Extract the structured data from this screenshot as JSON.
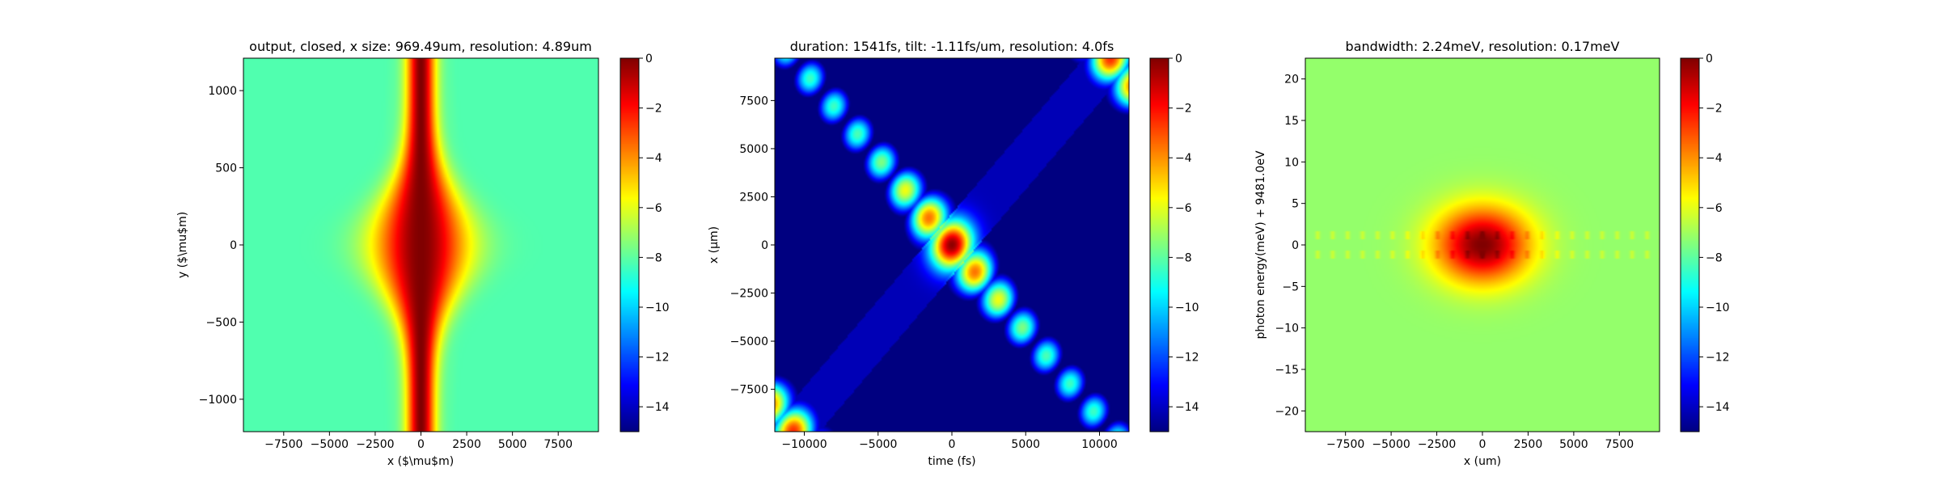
{
  "chart_data": [
    {
      "type": "heatmap",
      "title": "output, closed, x size: 969.49um, resolution: 4.89um",
      "xlabel": "x ($\\mu$m)",
      "ylabel": "y ($\\mu$m)",
      "xlim": [
        -9700,
        9700
      ],
      "ylim": [
        -1210,
        1210
      ],
      "xticks": [
        -7500,
        -5000,
        -2500,
        0,
        2500,
        5000,
        7500
      ],
      "yticks": [
        -1000,
        -500,
        0,
        500,
        1000
      ],
      "colorbar": {
        "ticks": [
          0,
          -2,
          -4,
          -6,
          -8,
          -10,
          -12,
          -14
        ],
        "range": [
          -15,
          0
        ],
        "colormap": "jet"
      },
      "field": {
        "description_values": "log intensity, peak 0 at origin",
        "core_half_width_x": 1000,
        "edge_level": -11
      }
    },
    {
      "type": "heatmap",
      "title": "duration: 1541fs, tilt: -1.11fs/um, resolution: 4.0fs",
      "xlabel": "time (fs)",
      "ylabel": "x (μm)",
      "xlim": [
        -12000,
        12000
      ],
      "ylim": [
        -9700,
        9700
      ],
      "xticks": [
        -10000,
        -5000,
        0,
        5000,
        10000
      ],
      "yticks": [
        -7500,
        -5000,
        -2500,
        0,
        2500,
        5000,
        7500
      ],
      "colorbar": {
        "ticks": [
          0,
          -2,
          -4,
          -6,
          -8,
          -10,
          -12,
          -14
        ],
        "range": [
          -15,
          0
        ],
        "colormap": "jet"
      },
      "field": {
        "tilt_fs_per_um": -1.11,
        "period_fs": 21500,
        "blob_spacing_fs": 1600,
        "peak": [
          0,
          0
        ]
      }
    },
    {
      "type": "heatmap",
      "title": "bandwidth: 2.24meV, resolution: 0.17meV",
      "xlabel": "x (um)",
      "ylabel": "photon energy(meV) + 9481.0eV",
      "xlim": [
        -9700,
        9700
      ],
      "ylim": [
        -22.5,
        22.5
      ],
      "xticks": [
        -7500,
        -5000,
        -2500,
        0,
        2500,
        5000,
        7500
      ],
      "yticks": [
        -20,
        -15,
        -10,
        -5,
        0,
        5,
        10,
        15,
        20
      ],
      "colorbar": {
        "ticks": [
          0,
          -2,
          -4,
          -6,
          -8,
          -10,
          -12,
          -14
        ],
        "range": [
          -15,
          0
        ],
        "colormap": "jet"
      },
      "field": {
        "band_half_width_meV": 5,
        "peak": [
          0,
          0
        ]
      }
    }
  ]
}
